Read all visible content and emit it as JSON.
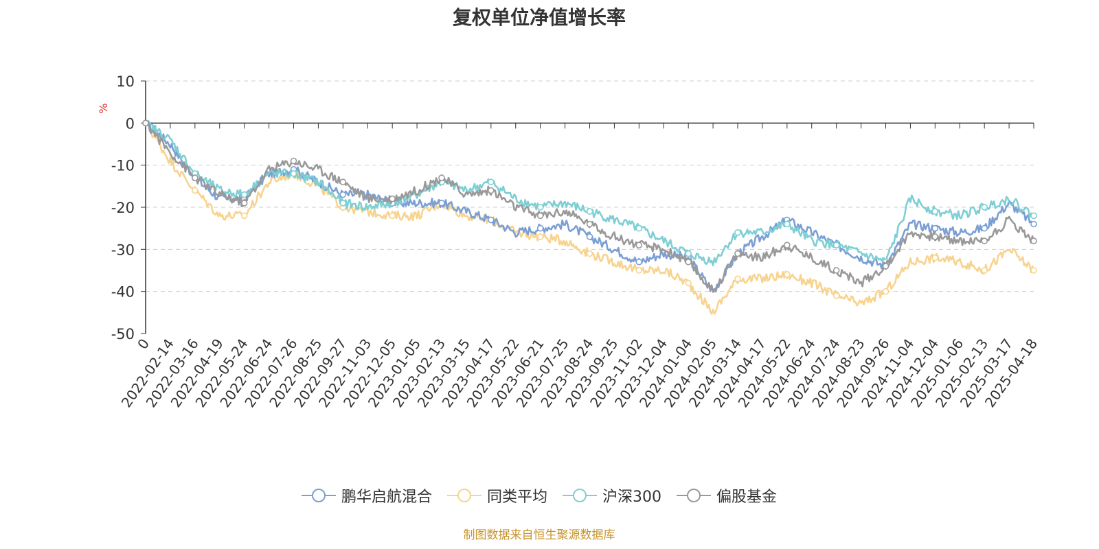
{
  "chart_data": {
    "type": "line",
    "title": "复权单位净值增长率",
    "ylabel": "%",
    "ylim": [
      -50,
      10
    ],
    "yticks": [
      10,
      0,
      -10,
      -20,
      -30,
      -40,
      -50
    ],
    "grid": true,
    "legend_position": "bottom",
    "x": [
      "0",
      "2022-02-14",
      "2022-03-16",
      "2022-04-19",
      "2022-05-24",
      "2022-06-24",
      "2022-07-26",
      "2022-08-25",
      "2022-09-27",
      "2022-11-03",
      "2022-12-05",
      "2023-01-05",
      "2023-02-13",
      "2023-03-15",
      "2023-04-17",
      "2023-05-22",
      "2023-06-21",
      "2023-07-25",
      "2023-08-24",
      "2023-09-25",
      "2023-11-02",
      "2023-12-04",
      "2024-01-04",
      "2024-02-05",
      "2024-03-14",
      "2024-04-17",
      "2024-05-22",
      "2024-06-24",
      "2024-07-24",
      "2024-08-23",
      "2024-09-26",
      "2024-11-04",
      "2024-12-04",
      "2025-01-06",
      "2025-02-13",
      "2025-03-17",
      "2025-04-18"
    ],
    "series": [
      {
        "name": "鹏华启航混合",
        "color": "#7b9fd4",
        "values": [
          0,
          -5,
          -13,
          -18,
          -18,
          -12,
          -11,
          -14,
          -17,
          -17,
          -19,
          -19,
          -19,
          -21,
          -23,
          -26,
          -25,
          -24,
          -27,
          -30,
          -33,
          -31,
          -32,
          -40,
          -31,
          -27,
          -23,
          -26,
          -29,
          -32,
          -34,
          -24,
          -25,
          -26,
          -25,
          -19,
          -24
        ]
      },
      {
        "name": "同类平均",
        "color": "#f7d38e",
        "values": [
          0,
          -9,
          -16,
          -22,
          -22,
          -14,
          -12,
          -15,
          -20,
          -21,
          -22,
          -22,
          -19,
          -22,
          -23,
          -26,
          -27,
          -28,
          -31,
          -33,
          -35,
          -35,
          -38,
          -45,
          -37,
          -37,
          -36,
          -38,
          -41,
          -43,
          -40,
          -33,
          -32,
          -33,
          -35,
          -30,
          -35
        ]
      },
      {
        "name": "沪深300",
        "color": "#7ecfd4",
        "values": [
          0,
          -4,
          -12,
          -16,
          -17,
          -12,
          -12,
          -14,
          -19,
          -20,
          -19,
          -17,
          -14,
          -16,
          -14,
          -18,
          -20,
          -19,
          -21,
          -23,
          -25,
          -28,
          -31,
          -33,
          -26,
          -26,
          -24,
          -28,
          -29,
          -31,
          -33,
          -18,
          -21,
          -22,
          -20,
          -18,
          -22
        ]
      },
      {
        "name": "偏股基金",
        "color": "#999999",
        "values": [
          0,
          -7,
          -13,
          -17,
          -19,
          -11,
          -9,
          -11,
          -14,
          -18,
          -18,
          -16,
          -13,
          -17,
          -16,
          -20,
          -22,
          -21,
          -24,
          -27,
          -29,
          -30,
          -33,
          -40,
          -31,
          -32,
          -29,
          -32,
          -35,
          -38,
          -34,
          -26,
          -27,
          -28,
          -28,
          -23,
          -28
        ]
      }
    ],
    "source_note": "制图数据来自恒生聚源数据库"
  }
}
